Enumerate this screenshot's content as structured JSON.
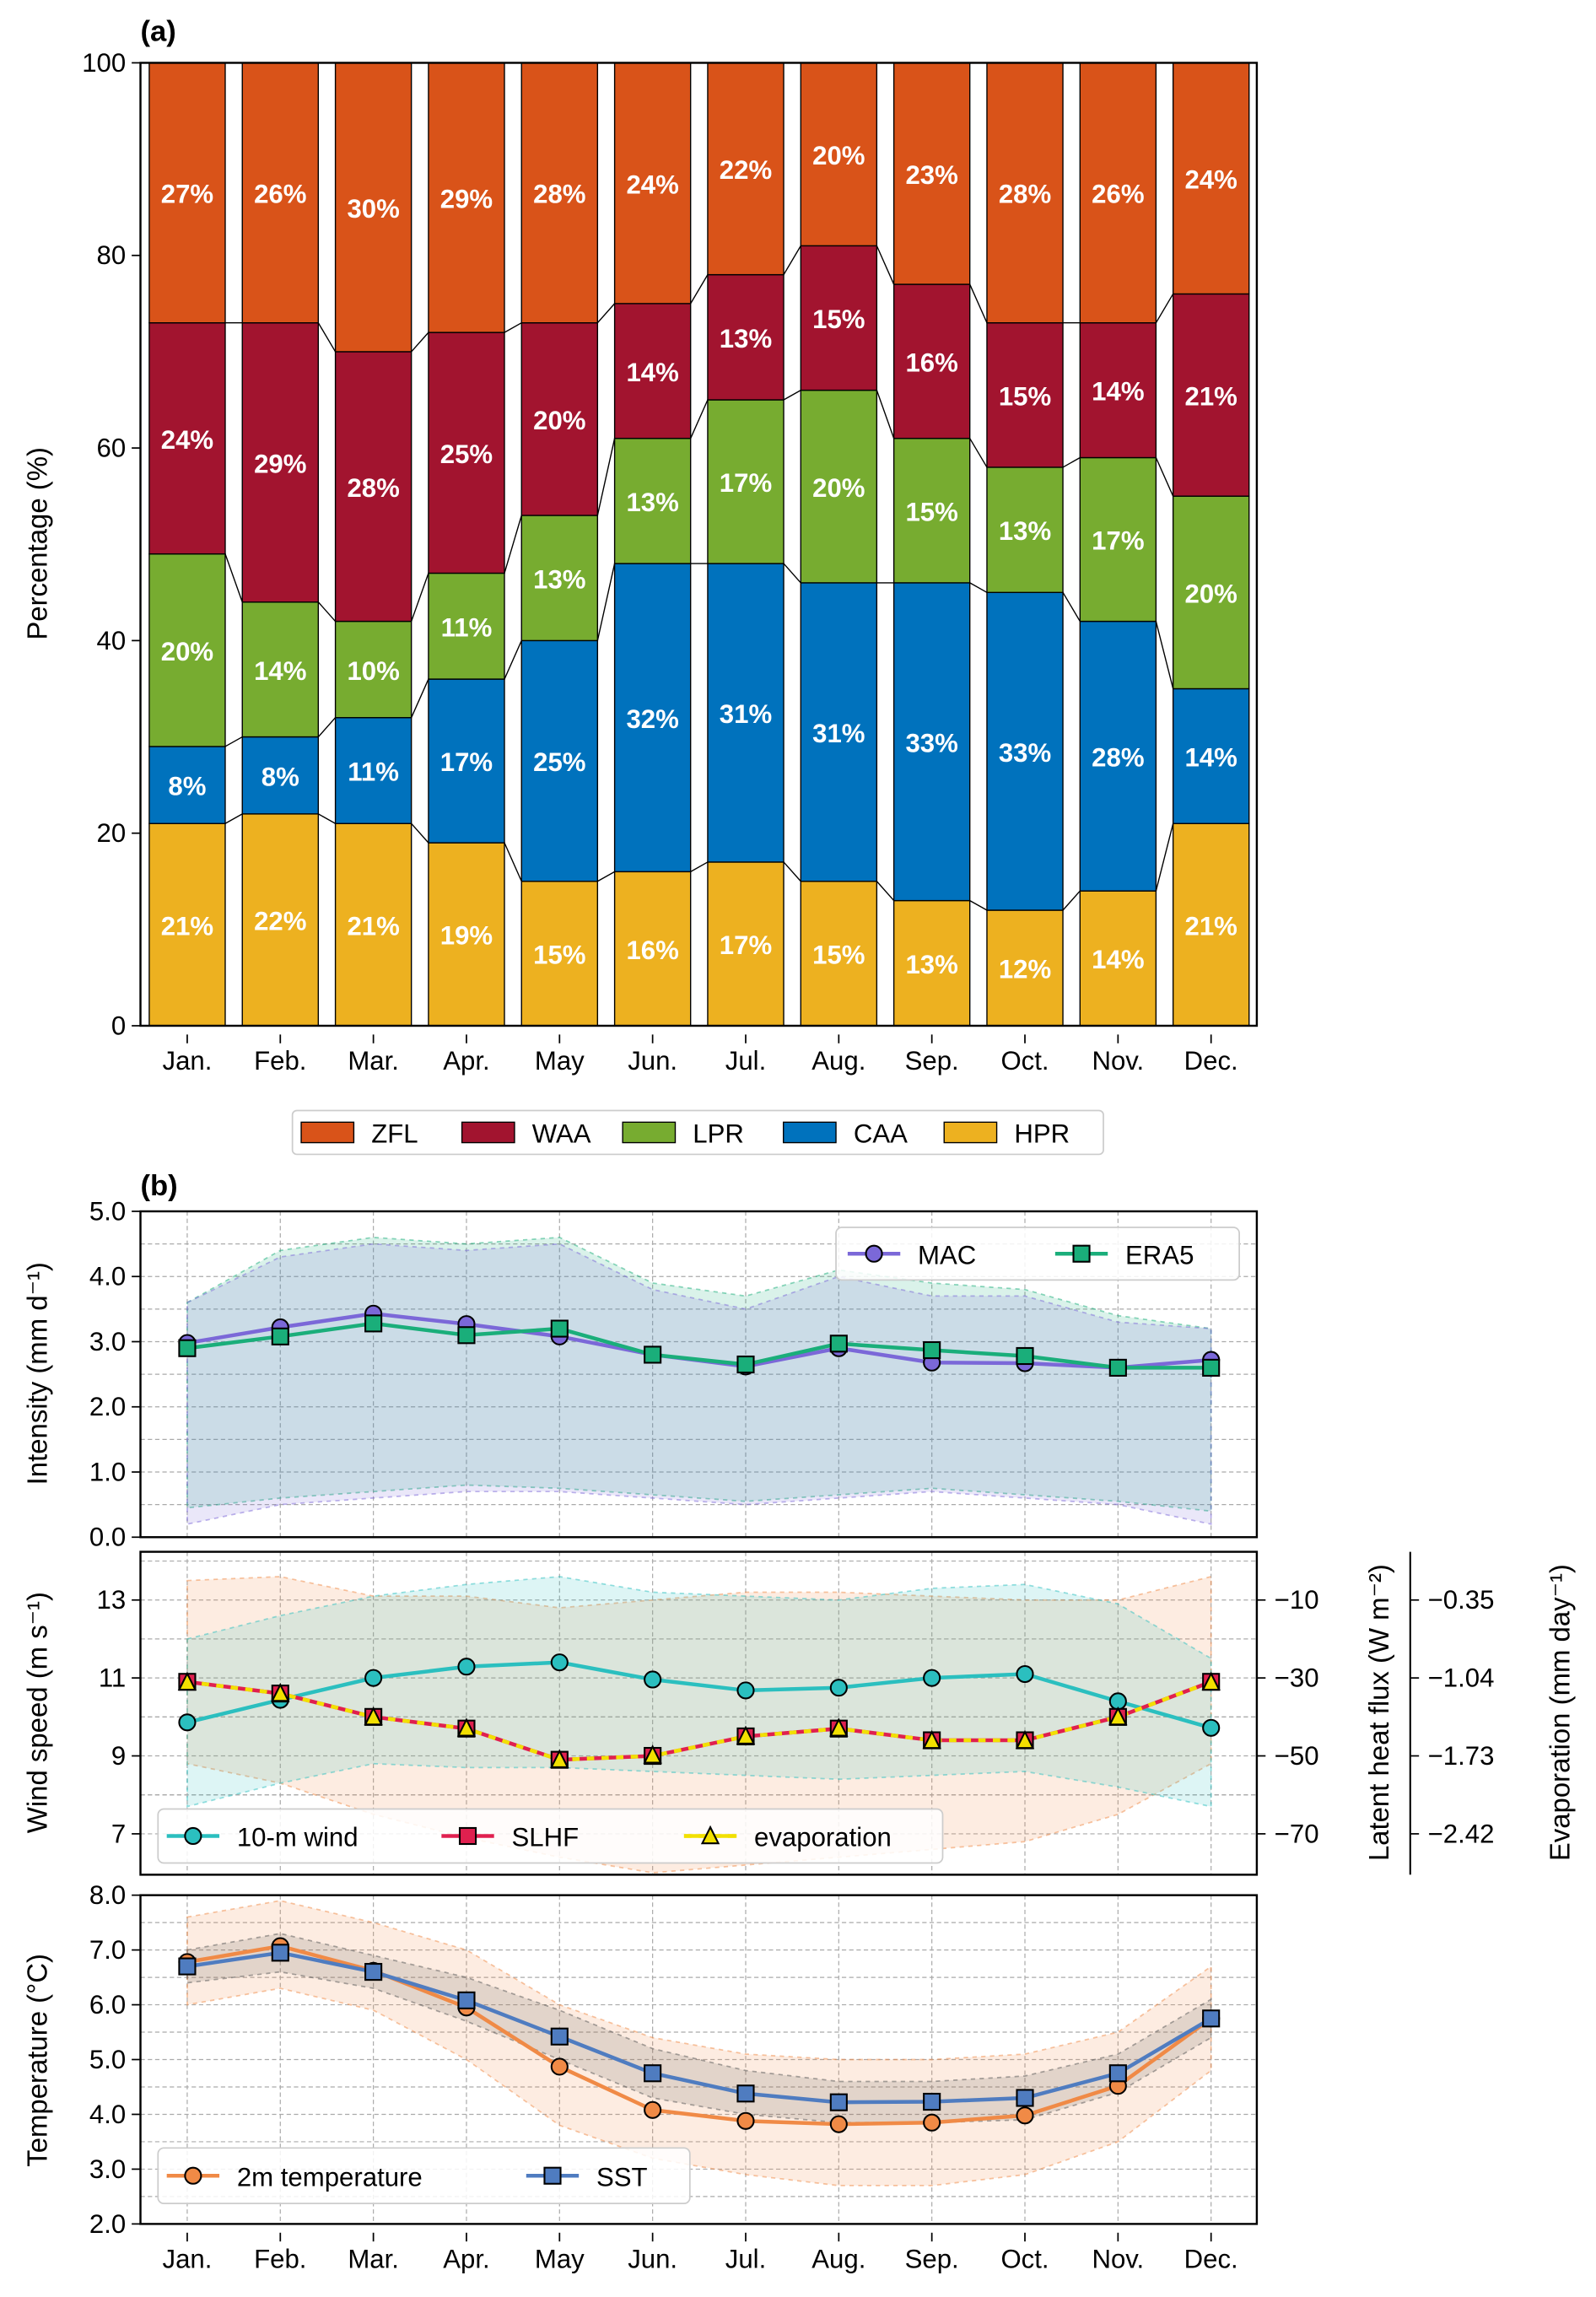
{
  "panel_labels": {
    "a": "(a)",
    "b": "(b)"
  },
  "months": [
    "Jan.",
    "Feb.",
    "Mar.",
    "Apr.",
    "May",
    "Jun.",
    "Jul.",
    "Aug.",
    "Sep.",
    "Oct.",
    "Nov.",
    "Dec."
  ],
  "colors": {
    "ZFL": "#D95319",
    "WAA": "#A2142F",
    "LPR": "#77AC30",
    "CAA": "#0072BD",
    "HPR": "#EDB120",
    "MAC": "#7B68D8",
    "ERA5": "#1AAE7A",
    "wind": "#2BBFBF",
    "SLHF": "#E0204F",
    "evaporation": "#F2E000",
    "t2m": "#F08A46",
    "SST": "#4F7CC0"
  },
  "chart_data": [
    {
      "id": "a",
      "type": "bar",
      "stacked": true,
      "ylabel": "Percentage (%)",
      "ylim": [
        0,
        100
      ],
      "yticks": [
        "0",
        "20",
        "40",
        "60",
        "80",
        "100"
      ],
      "legend_placement": "bottom-center",
      "series": [
        {
          "name": "HPR",
          "values": [
            21,
            22,
            21,
            19,
            15,
            16,
            17,
            15,
            13,
            12,
            14,
            21
          ]
        },
        {
          "name": "CAA",
          "values": [
            8,
            8,
            11,
            17,
            25,
            32,
            31,
            31,
            33,
            33,
            28,
            14
          ]
        },
        {
          "name": "LPR",
          "values": [
            20,
            14,
            10,
            11,
            13,
            13,
            17,
            20,
            15,
            13,
            17,
            20
          ]
        },
        {
          "name": "WAA",
          "values": [
            24,
            29,
            28,
            25,
            20,
            14,
            13,
            15,
            16,
            15,
            14,
            21
          ]
        },
        {
          "name": "ZFL",
          "values": [
            27,
            26,
            30,
            29,
            28,
            24,
            22,
            20,
            23,
            28,
            26,
            24
          ]
        }
      ],
      "legend_order": [
        "ZFL",
        "WAA",
        "LPR",
        "CAA",
        "HPR"
      ]
    },
    {
      "id": "b1",
      "type": "line",
      "ylabel": "Intensity (mm d⁻¹)",
      "ylim": [
        0,
        5
      ],
      "yticks": [
        "0.0",
        "1.0",
        "2.0",
        "3.0",
        "4.0",
        "5.0"
      ],
      "grid": true,
      "legend_placement": "top-right",
      "series": [
        {
          "name": "MAC",
          "marker": "circle",
          "values": [
            2.98,
            3.22,
            3.43,
            3.27,
            3.08,
            2.8,
            2.62,
            2.9,
            2.68,
            2.67,
            2.6,
            2.72
          ],
          "upper": [
            3.6,
            4.3,
            4.5,
            4.4,
            4.5,
            3.8,
            3.5,
            4.0,
            3.7,
            3.7,
            3.3,
            3.2
          ],
          "lower": [
            0.2,
            0.5,
            0.6,
            0.7,
            0.7,
            0.6,
            0.5,
            0.6,
            0.7,
            0.6,
            0.5,
            0.2
          ]
        },
        {
          "name": "ERA5",
          "marker": "square",
          "values": [
            2.9,
            3.08,
            3.28,
            3.1,
            3.2,
            2.8,
            2.65,
            2.97,
            2.87,
            2.78,
            2.6,
            2.6
          ],
          "upper": [
            3.6,
            4.4,
            4.6,
            4.5,
            4.6,
            3.9,
            3.7,
            4.1,
            3.9,
            3.8,
            3.4,
            3.2
          ],
          "lower": [
            0.45,
            0.6,
            0.7,
            0.8,
            0.75,
            0.65,
            0.55,
            0.65,
            0.75,
            0.65,
            0.55,
            0.4
          ]
        }
      ]
    },
    {
      "id": "b2",
      "type": "line",
      "ylabel": "Wind speed (m s⁻¹)",
      "ylim": [
        6.2,
        14.5
      ],
      "yticks": [
        "7",
        "9",
        "11",
        "13"
      ],
      "y2label": "Latent heat flux (W m⁻²)",
      "y2ticks": [
        "−10",
        "−30",
        "−50",
        "−70"
      ],
      "y3label": "Evaporation (mm day⁻¹)",
      "y3ticks": [
        "−0.35",
        "−1.04",
        "−1.73",
        "−2.42"
      ],
      "grid": true,
      "legend_placement": "bottom-left",
      "series": [
        {
          "name": "10-m wind",
          "axis": "left",
          "marker": "circle",
          "values": [
            9.86,
            10.44,
            11.0,
            11.29,
            11.4,
            10.96,
            10.68,
            10.75,
            11.0,
            11.1,
            10.4,
            9.72
          ],
          "upper": [
            12.0,
            12.6,
            13.1,
            13.4,
            13.6,
            13.2,
            13.1,
            13.0,
            13.3,
            13.4,
            12.9,
            11.5
          ],
          "lower": [
            7.7,
            8.3,
            8.8,
            8.7,
            8.7,
            8.6,
            8.5,
            8.4,
            8.5,
            8.6,
            8.2,
            7.7
          ]
        },
        {
          "name": "SLHF",
          "axis": "right",
          "marker": "square",
          "values": [
            -31,
            -34,
            -40,
            -43,
            -51,
            -50,
            -45,
            -43,
            -46,
            -46,
            -40,
            -31
          ],
          "upper": [
            -5,
            -4,
            -9,
            -9,
            -12,
            -10,
            -8,
            -8,
            -9,
            -10,
            -10,
            -4
          ],
          "lower": [
            -52,
            -57,
            -65,
            -71,
            -76,
            -80,
            -78,
            -76,
            -74,
            -72,
            -65,
            -52
          ]
        },
        {
          "name": "evaporation",
          "axis": "right2",
          "marker": "triangle",
          "values": [
            -1.08,
            -1.18,
            -1.39,
            -1.49,
            -1.77,
            -1.73,
            -1.56,
            -1.49,
            -1.6,
            -1.6,
            -1.39,
            -1.08
          ]
        }
      ]
    },
    {
      "id": "b3",
      "type": "line",
      "ylabel": "Temperature (°C)",
      "ylim": [
        2,
        8
      ],
      "yticks": [
        "2.0",
        "3.0",
        "4.0",
        "5.0",
        "6.0",
        "7.0",
        "8.0"
      ],
      "grid": true,
      "legend_placement": "bottom-left",
      "series": [
        {
          "name": "2m temperature",
          "marker": "circle",
          "values": [
            6.78,
            7.07,
            6.62,
            5.95,
            4.87,
            4.08,
            3.88,
            3.82,
            3.85,
            3.98,
            4.52,
            5.75
          ],
          "upper": [
            7.6,
            7.9,
            7.5,
            7.0,
            6.0,
            5.4,
            5.1,
            5.0,
            5.0,
            5.1,
            5.5,
            6.7
          ],
          "lower": [
            6.0,
            6.3,
            5.9,
            5.0,
            3.8,
            3.2,
            2.9,
            2.7,
            2.7,
            2.9,
            3.5,
            4.8
          ]
        },
        {
          "name": "SST",
          "marker": "square",
          "values": [
            6.7,
            6.95,
            6.6,
            6.08,
            5.42,
            4.75,
            4.38,
            4.22,
            4.23,
            4.3,
            4.75,
            5.75
          ],
          "upper": [
            7.0,
            7.3,
            6.9,
            6.5,
            5.9,
            5.2,
            4.8,
            4.6,
            4.6,
            4.7,
            5.1,
            6.1
          ],
          "lower": [
            6.4,
            6.6,
            6.3,
            5.7,
            5.0,
            4.3,
            4.0,
            3.85,
            3.85,
            3.9,
            4.4,
            5.4
          ]
        }
      ]
    }
  ]
}
